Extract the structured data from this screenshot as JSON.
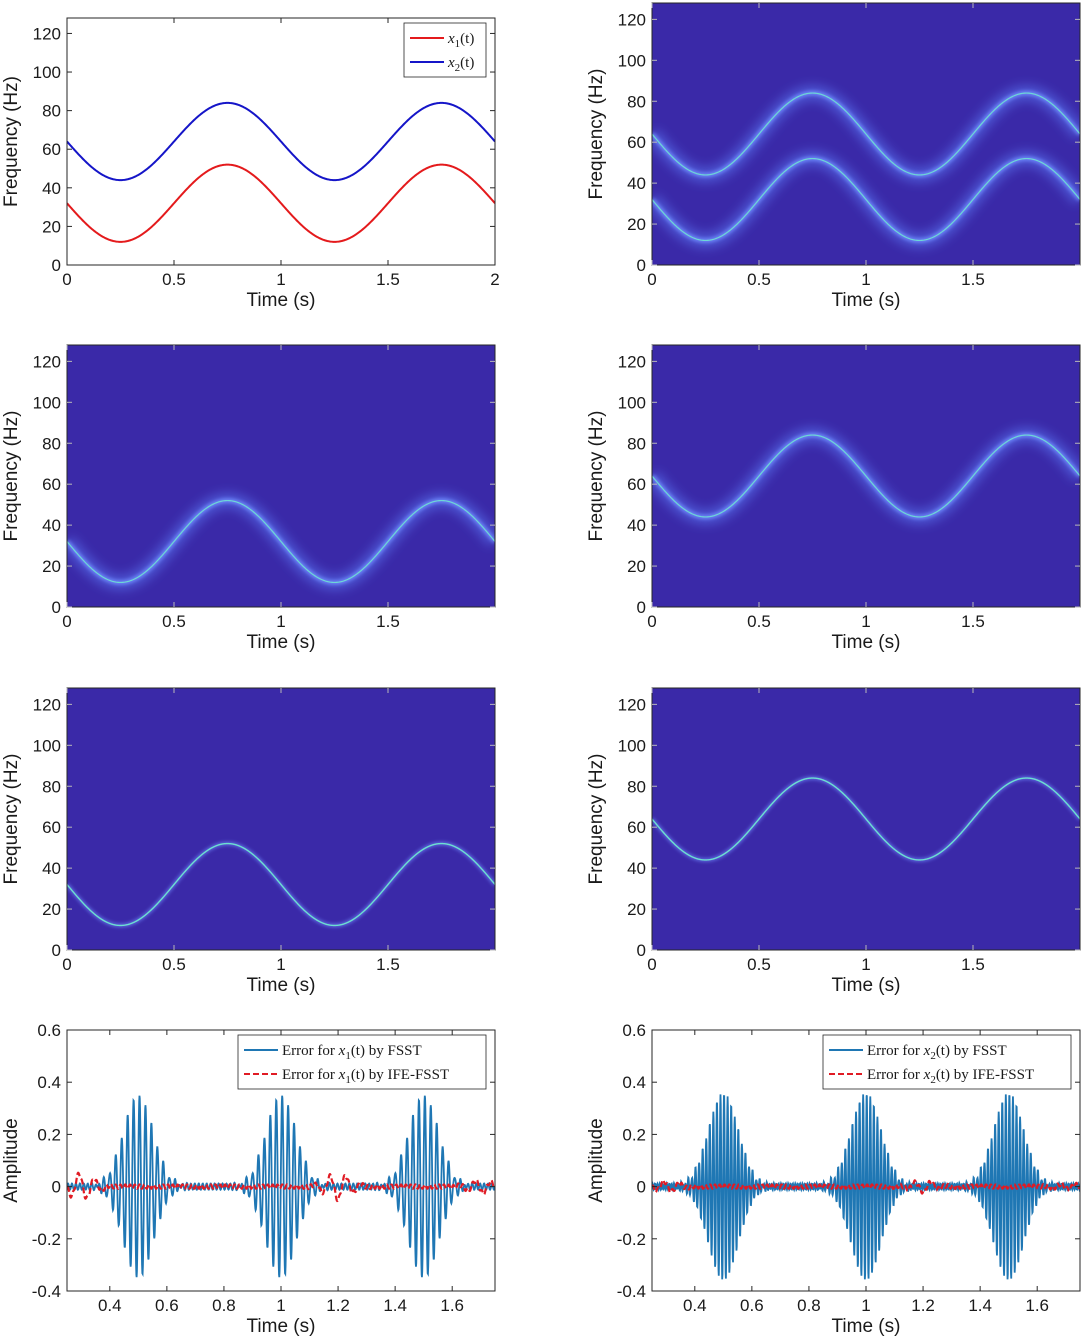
{
  "colors": {
    "x1_curve": "#e41a1c",
    "x2_curve": "#1515c8",
    "tf_background": "#3a29a8",
    "ridge_glow": "#5a73f0",
    "ridge_core": "#6ee8d0",
    "error_fsst": "#1f77b4",
    "error_ife": "#e01b24"
  },
  "chart_data": [
    {
      "type": "line",
      "panel": "top-left",
      "xlabel": "Time (s)",
      "ylabel": "Frequency (Hz)",
      "xlim": [
        0,
        2
      ],
      "ylim": [
        0,
        128
      ],
      "xticks": [
        0,
        0.5,
        1,
        1.5,
        2
      ],
      "xtick_labels": [
        "0",
        "0.5",
        "1",
        "1.5",
        "2"
      ],
      "yticks": [
        0,
        20,
        40,
        60,
        80,
        100,
        120
      ],
      "ytick_labels": [
        "0",
        "20",
        "40",
        "60",
        "80",
        "100",
        "120"
      ],
      "series": [
        {
          "name": "x1(t)",
          "legend_var": "x",
          "legend_sub": "1",
          "legend_rest": "(t)",
          "formula": "32 - 20*sin(2*pi*t)",
          "center": 32,
          "amplitude": 20,
          "color_key": "x1_curve"
        },
        {
          "name": "x2(t)",
          "legend_var": "x",
          "legend_sub": "2",
          "legend_rest": "(t)",
          "formula": "64 - 20*sin(2*pi*t)",
          "center": 64,
          "amplitude": 20,
          "color_key": "x2_curve"
        }
      ],
      "legend_position": "top-right"
    },
    {
      "type": "heatmap",
      "panel": "top-right",
      "xlabel": "Time (s)",
      "ylabel": "Frequency (Hz)",
      "xlim": [
        0,
        2
      ],
      "ylim": [
        0,
        128
      ],
      "xticks": [
        0,
        0.5,
        1,
        1.5
      ],
      "xtick_labels": [
        "0",
        "0.5",
        "1",
        "1.5"
      ],
      "yticks": [
        0,
        20,
        40,
        60,
        80,
        100,
        120
      ],
      "ytick_labels": [
        "0",
        "20",
        "40",
        "60",
        "80",
        "100",
        "120"
      ],
      "ridges": [
        {
          "center": 32,
          "amplitude": 20
        },
        {
          "center": 64,
          "amplitude": 20
        }
      ],
      "sharpness": "blurred"
    },
    {
      "type": "heatmap",
      "panel": "middle-left",
      "xlabel": "Time (s)",
      "ylabel": "Frequency (Hz)",
      "xlim": [
        0,
        2
      ],
      "ylim": [
        0,
        128
      ],
      "xticks": [
        0,
        0.5,
        1,
        1.5
      ],
      "xtick_labels": [
        "0",
        "0.5",
        "1",
        "1.5"
      ],
      "yticks": [
        0,
        20,
        40,
        60,
        80,
        100,
        120
      ],
      "ytick_labels": [
        "0",
        "20",
        "40",
        "60",
        "80",
        "100",
        "120"
      ],
      "ridges": [
        {
          "center": 32,
          "amplitude": 20
        }
      ],
      "sharpness": "blurred"
    },
    {
      "type": "heatmap",
      "panel": "middle-right",
      "xlabel": "Time (s)",
      "ylabel": "Frequency (Hz)",
      "xlim": [
        0,
        2
      ],
      "ylim": [
        0,
        128
      ],
      "xticks": [
        0,
        0.5,
        1,
        1.5
      ],
      "xtick_labels": [
        "0",
        "0.5",
        "1",
        "1.5"
      ],
      "yticks": [
        0,
        20,
        40,
        60,
        80,
        100,
        120
      ],
      "ytick_labels": [
        "0",
        "20",
        "40",
        "60",
        "80",
        "100",
        "120"
      ],
      "ridges": [
        {
          "center": 64,
          "amplitude": 20
        }
      ],
      "sharpness": "blurred"
    },
    {
      "type": "heatmap",
      "panel": "lower-left",
      "xlabel": "Time (s)",
      "ylabel": "Frequency (Hz)",
      "xlim": [
        0,
        2
      ],
      "ylim": [
        0,
        128
      ],
      "xticks": [
        0,
        0.5,
        1,
        1.5
      ],
      "xtick_labels": [
        "0",
        "0.5",
        "1",
        "1.5"
      ],
      "yticks": [
        0,
        20,
        40,
        60,
        80,
        100,
        120
      ],
      "ytick_labels": [
        "0",
        "20",
        "40",
        "60",
        "80",
        "100",
        "120"
      ],
      "ridges": [
        {
          "center": 32,
          "amplitude": 20
        }
      ],
      "sharpness": "sharp"
    },
    {
      "type": "heatmap",
      "panel": "lower-right",
      "xlabel": "Time (s)",
      "ylabel": "Frequency (Hz)",
      "xlim": [
        0,
        2
      ],
      "ylim": [
        0,
        128
      ],
      "xticks": [
        0,
        0.5,
        1,
        1.5
      ],
      "xtick_labels": [
        "0",
        "0.5",
        "1",
        "1.5"
      ],
      "yticks": [
        0,
        20,
        40,
        60,
        80,
        100,
        120
      ],
      "ytick_labels": [
        "0",
        "20",
        "40",
        "60",
        "80",
        "100",
        "120"
      ],
      "ridges": [
        {
          "center": 64,
          "amplitude": 20
        }
      ],
      "sharpness": "sharp"
    },
    {
      "type": "line",
      "panel": "bottom-left",
      "xlabel": "Time (s)",
      "ylabel": "Amplitude",
      "xlim": [
        0.25,
        1.75
      ],
      "ylim": [
        -0.4,
        0.6
      ],
      "xticks": [
        0.4,
        0.6,
        0.8,
        1,
        1.2,
        1.4,
        1.6
      ],
      "xtick_labels": [
        "0.4",
        "0.6",
        "0.8",
        "1",
        "1.2",
        "1.4",
        "1.6"
      ],
      "yticks": [
        -0.4,
        -0.2,
        0,
        0.2,
        0.4,
        0.6
      ],
      "ytick_labels": [
        "-0.4",
        "-0.2",
        "0",
        "0.2",
        "0.4",
        "0.6"
      ],
      "series": [
        {
          "name": "Error for x1(t) by FSST",
          "legend_pre": "Error for ",
          "legend_var": "x",
          "legend_sub": "1",
          "legend_rest": "(t) by FSST",
          "style": "solid",
          "color_key": "error_fsst",
          "peak_amplitude": 0.35,
          "burst_centers": [
            0.5,
            1.0,
            1.5
          ],
          "burst_width": 0.075,
          "carrier_hz": 48
        },
        {
          "name": "Error for x1(t) by IFE-FSST",
          "legend_pre": "Error for ",
          "legend_var": "x",
          "legend_sub": "1",
          "legend_rest": "(t) by IFE-FSST",
          "style": "dashed",
          "color_key": "error_ife",
          "peak_amplitude": 0.05,
          "max_abs_approx": 0.06
        }
      ],
      "legend_position": "top-right"
    },
    {
      "type": "line",
      "panel": "bottom-right",
      "xlabel": "Time (s)",
      "ylabel": "Amplitude",
      "xlim": [
        0.25,
        1.75
      ],
      "ylim": [
        -0.4,
        0.6
      ],
      "xticks": [
        0.4,
        0.6,
        0.8,
        1,
        1.2,
        1.4,
        1.6
      ],
      "xtick_labels": [
        "0.4",
        "0.6",
        "0.8",
        "1",
        "1.2",
        "1.4",
        "1.6"
      ],
      "yticks": [
        -0.4,
        -0.2,
        0,
        0.2,
        0.4,
        0.6
      ],
      "ytick_labels": [
        "-0.4",
        "-0.2",
        "0",
        "0.2",
        "0.4",
        "0.6"
      ],
      "series": [
        {
          "name": "Error for x2(t) by FSST",
          "legend_pre": "Error for ",
          "legend_var": "x",
          "legend_sub": "2",
          "legend_rest": "(t) by FSST",
          "style": "solid",
          "color_key": "error_fsst",
          "peak_amplitude": 0.36,
          "burst_centers": [
            0.5,
            1.0,
            1.5
          ],
          "burst_width": 0.075,
          "carrier_hz": 80
        },
        {
          "name": "Error for x2(t) by IFE-FSST",
          "legend_pre": "Error for ",
          "legend_var": "x",
          "legend_sub": "2",
          "legend_rest": "(t) by IFE-FSST",
          "style": "dashed",
          "color_key": "error_ife",
          "peak_amplitude": 0.02,
          "max_abs_approx": 0.03
        }
      ],
      "legend_position": "top-right"
    }
  ]
}
